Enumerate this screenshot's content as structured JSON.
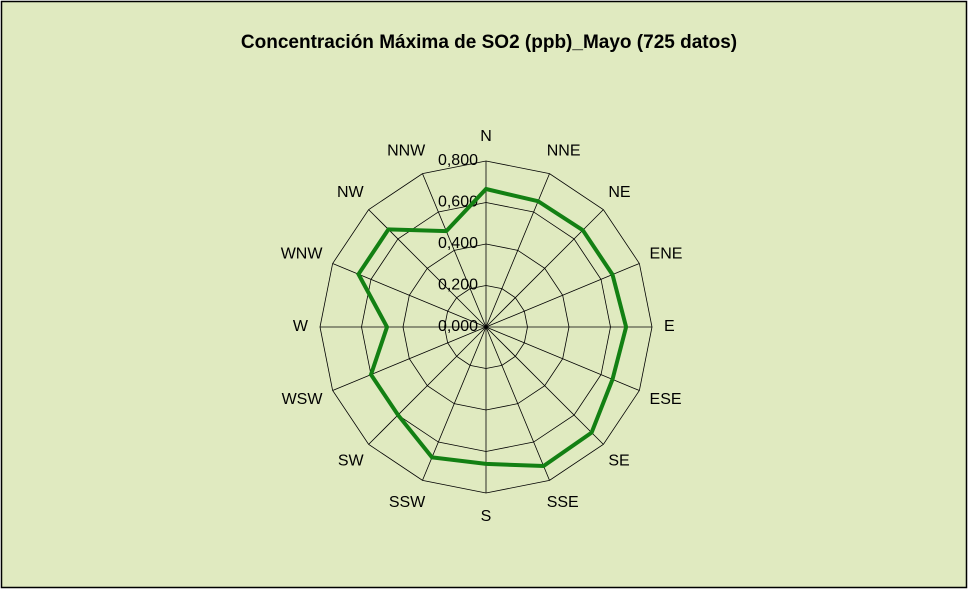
{
  "chart_data": {
    "type": "radar",
    "title": "Concentración Máxima de SO2 (ppb)_Mayo (725 datos)",
    "categories": [
      "N",
      "NNE",
      "NE",
      "ENE",
      "E",
      "ESE",
      "SE",
      "SSE",
      "S",
      "SSW",
      "SW",
      "WSW",
      "W",
      "WNW",
      "NW",
      "NNW"
    ],
    "series": [
      {
        "name": "SO2",
        "color": "#138013",
        "values": [
          0.665,
          0.656,
          0.66,
          0.66,
          0.675,
          0.66,
          0.72,
          0.725,
          0.66,
          0.68,
          0.6,
          0.6,
          0.477,
          0.665,
          0.665,
          0.5
        ]
      }
    ],
    "ylim": [
      0,
      0.8
    ],
    "yticks": [
      {
        "value": 0,
        "label": "0,000"
      },
      {
        "value": 0.2,
        "label": "0,200"
      },
      {
        "value": 0.4,
        "label": "0,400"
      },
      {
        "value": 0.6,
        "label": "0,600"
      },
      {
        "value": 0.8,
        "label": "0,800"
      }
    ],
    "grid": true
  }
}
